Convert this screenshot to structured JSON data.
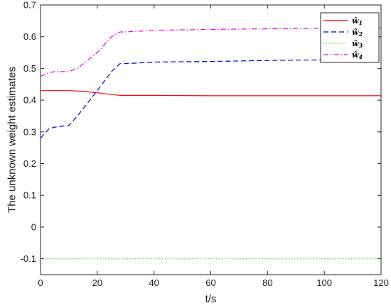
{
  "chart_data": {
    "type": "line",
    "title": "",
    "xlabel": "t/s",
    "ylabel": "The unknown weight estimates",
    "xlim": [
      0,
      120
    ],
    "ylim": [
      -0.15,
      0.7
    ],
    "xticks": [
      0,
      20,
      40,
      60,
      80,
      100,
      120
    ],
    "xtick_labels": [
      "0",
      "20",
      "40",
      "60",
      "80",
      "100",
      "120"
    ],
    "yticks": [
      -0.1,
      0,
      0.1,
      0.2,
      0.3,
      0.4,
      0.5,
      0.6,
      0.7
    ],
    "ytick_labels": [
      "-0.1",
      "0",
      "0.1",
      "0.2",
      "0.3",
      "0.4",
      "0.5",
      "0.6",
      "0.7"
    ],
    "grid": false,
    "legend_position": "top-right",
    "series": [
      {
        "name": "ŵ1",
        "color": "#ff0000",
        "dash": "solid",
        "x": [
          0,
          5,
          10,
          15,
          20,
          25,
          28,
          30,
          40,
          60,
          80,
          100,
          120
        ],
        "y": [
          0.43,
          0.43,
          0.43,
          0.428,
          0.423,
          0.418,
          0.415,
          0.415,
          0.415,
          0.414,
          0.414,
          0.414,
          0.414
        ]
      },
      {
        "name": "ŵ2",
        "color": "#0000cc",
        "dash": "dashed",
        "x": [
          0,
          3,
          5,
          10,
          13,
          20,
          25,
          28,
          30,
          40,
          60,
          80,
          100,
          120
        ],
        "y": [
          0.28,
          0.31,
          0.315,
          0.32,
          0.35,
          0.43,
          0.49,
          0.515,
          0.515,
          0.52,
          0.522,
          0.525,
          0.527,
          0.528
        ]
      },
      {
        "name": "ŵ3",
        "color": "#33cc33",
        "dash": "dotted",
        "x": [
          0,
          120
        ],
        "y": [
          -0.1,
          -0.1
        ]
      },
      {
        "name": "ŵ4",
        "color": "#e600e6",
        "dash": "dashdot",
        "x": [
          0,
          3,
          5,
          10,
          13,
          20,
          25,
          28,
          30,
          40,
          60,
          80,
          100,
          120
        ],
        "y": [
          0.475,
          0.487,
          0.49,
          0.49,
          0.5,
          0.55,
          0.6,
          0.615,
          0.615,
          0.62,
          0.623,
          0.625,
          0.627,
          0.628
        ]
      }
    ]
  }
}
